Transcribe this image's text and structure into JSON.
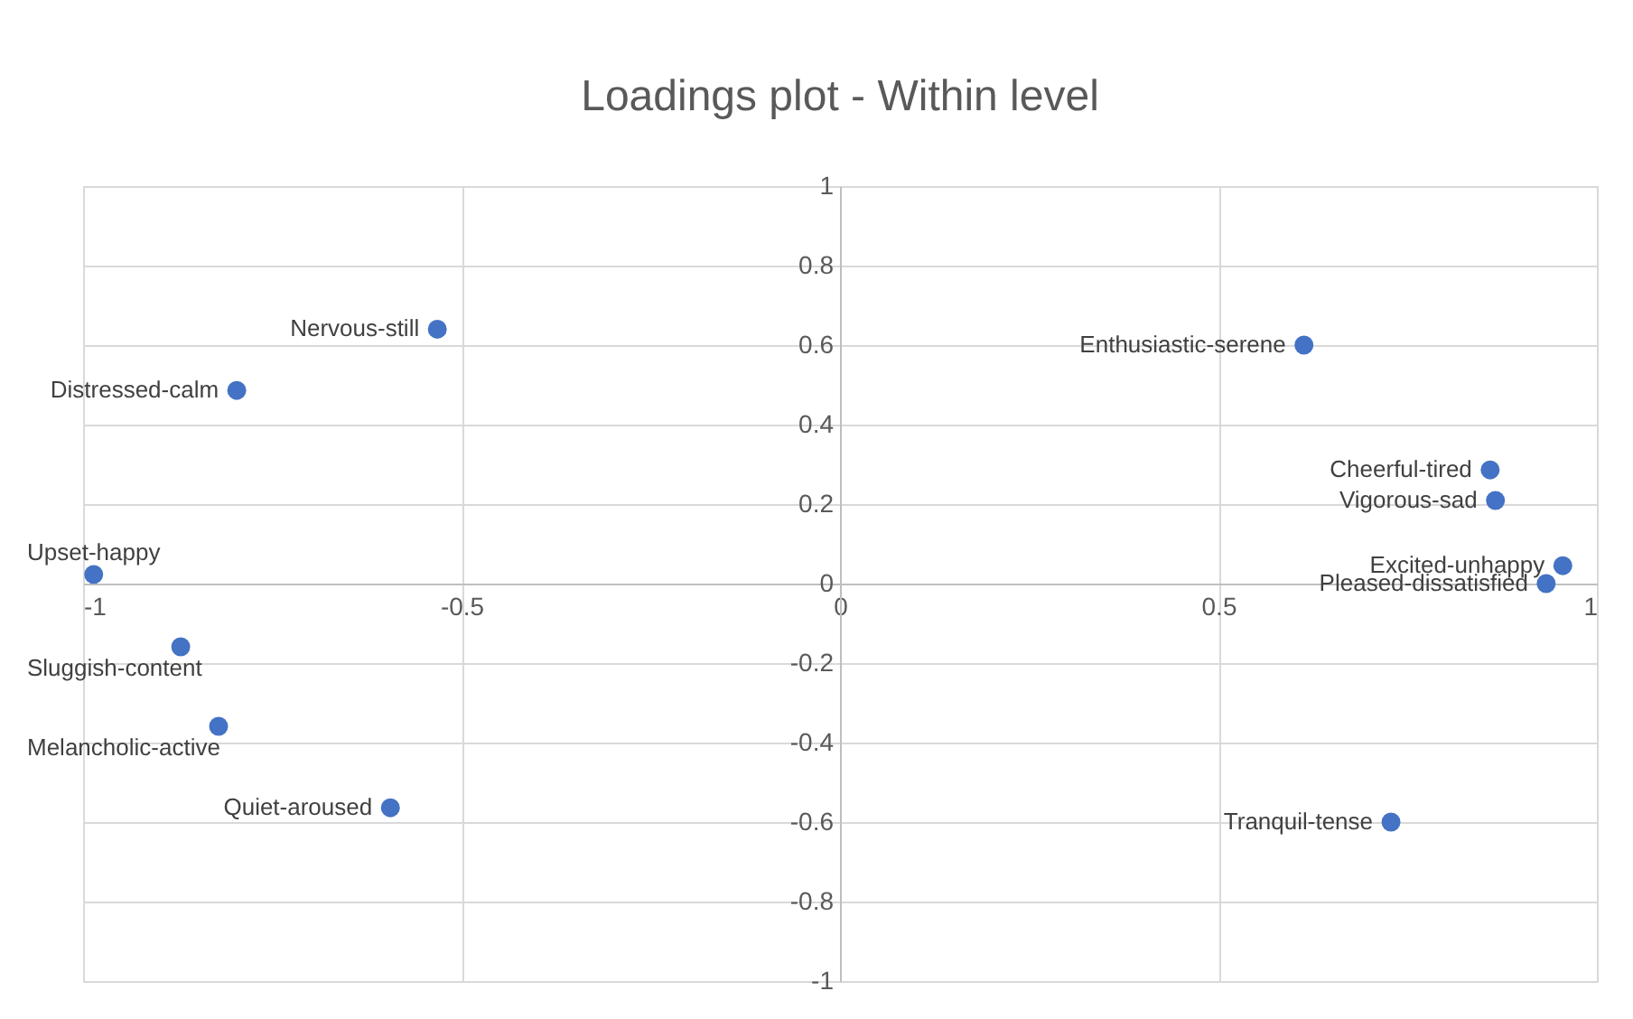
{
  "chart_data": {
    "type": "scatter",
    "title": "Loadings plot - Within level",
    "x": [
      -0.532,
      -0.797,
      -0.986,
      -0.871,
      -0.821,
      -0.594,
      0.613,
      0.859,
      0.866,
      0.955,
      0.933,
      0.728
    ],
    "series": [
      {
        "color": "#4472c4",
        "values": [
          0.64,
          0.486,
          0.023,
          -0.159,
          -0.359,
          -0.564,
          0.6,
          0.286,
          0.209,
          0.045,
          0.0,
          -0.6
        ]
      }
    ],
    "annotations": [
      {
        "text": "Nervous-still",
        "x": -0.532,
        "y": 0.64
      },
      {
        "text": "Distressed-calm",
        "x": -0.797,
        "y": 0.486
      },
      {
        "text": "Upset-happy",
        "x": -0.986,
        "y": 0.023
      },
      {
        "text": "Sluggish-content",
        "x": -0.871,
        "y": -0.159
      },
      {
        "text": "Melancholic-active",
        "x": -0.821,
        "y": -0.359
      },
      {
        "text": "Quiet-aroused",
        "x": -0.594,
        "y": -0.564
      },
      {
        "text": "Enthusiastic-serene",
        "x": 0.613,
        "y": 0.6
      },
      {
        "text": "Cheerful-tired",
        "x": 0.859,
        "y": 0.286
      },
      {
        "text": "Vigorous-sad",
        "x": 0.866,
        "y": 0.209
      },
      {
        "text": "Excited-unhappy",
        "x": 0.955,
        "y": 0.045
      },
      {
        "text": "Pleased-dissatisfied",
        "x": 0.933,
        "y": 0.0
      },
      {
        "text": "Tranquil-tense",
        "x": 0.728,
        "y": -0.6
      }
    ],
    "xlim": [
      -1,
      1
    ],
    "xticks": [
      -1,
      -0.5,
      0,
      0.5,
      1
    ],
    "ylim": [
      -1,
      1
    ],
    "yticks": [
      -1,
      -0.8,
      -0.6,
      -0.4,
      -0.2,
      0,
      0.2,
      0.4,
      0.6,
      0.8,
      1
    ],
    "grid": true,
    "marker": "circle",
    "legend": false
  }
}
